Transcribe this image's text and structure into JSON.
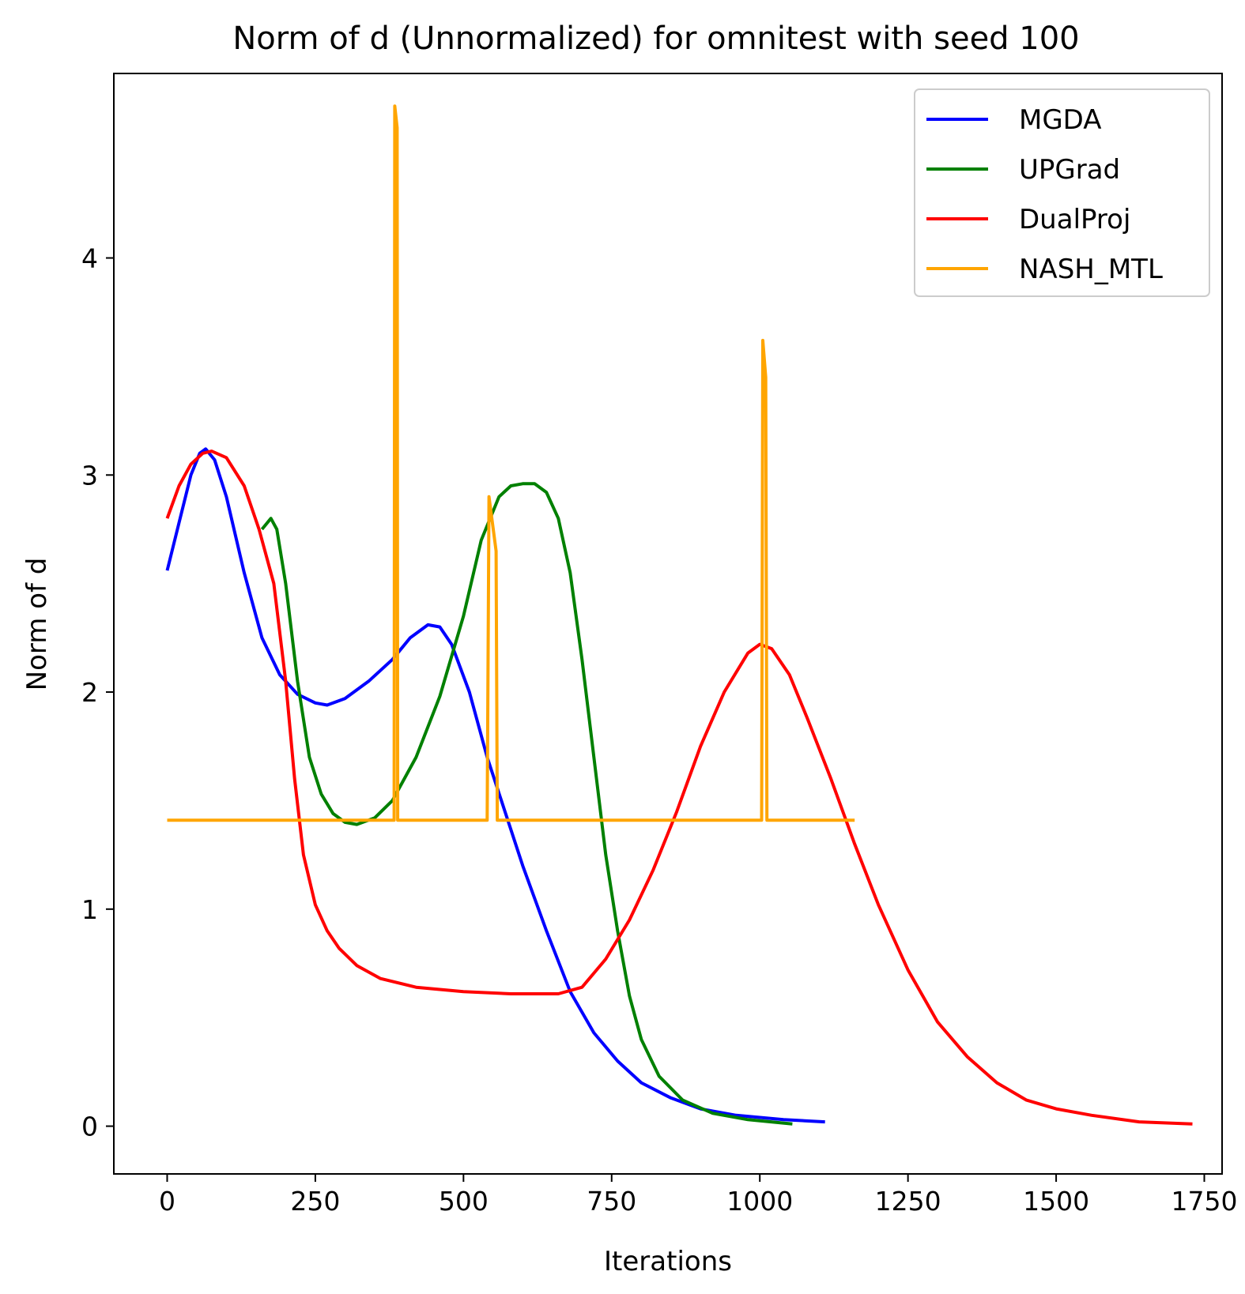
{
  "chart_data": {
    "type": "line",
    "title": "Norm of d (Unnormalized) for omnitest with seed 100",
    "xlabel": "Iterations",
    "ylabel": "Norm of d",
    "xlim": [
      -90,
      1780
    ],
    "ylim": [
      -0.22,
      4.85
    ],
    "xticks": [
      0,
      250,
      500,
      750,
      1000,
      1250,
      1500,
      1750
    ],
    "yticks": [
      0,
      1,
      2,
      3,
      4
    ],
    "legend_position": "top-right",
    "grid": false,
    "series": [
      {
        "name": "MGDA",
        "color": "#0000ff",
        "points": [
          [
            0,
            2.56
          ],
          [
            20,
            2.78
          ],
          [
            40,
            3.0
          ],
          [
            55,
            3.1
          ],
          [
            65,
            3.12
          ],
          [
            80,
            3.07
          ],
          [
            100,
            2.9
          ],
          [
            130,
            2.55
          ],
          [
            160,
            2.25
          ],
          [
            190,
            2.08
          ],
          [
            220,
            1.99
          ],
          [
            250,
            1.95
          ],
          [
            270,
            1.94
          ],
          [
            300,
            1.97
          ],
          [
            340,
            2.05
          ],
          [
            380,
            2.15
          ],
          [
            410,
            2.25
          ],
          [
            440,
            2.31
          ],
          [
            460,
            2.3
          ],
          [
            480,
            2.22
          ],
          [
            510,
            2.0
          ],
          [
            540,
            1.7
          ],
          [
            570,
            1.45
          ],
          [
            600,
            1.2
          ],
          [
            640,
            0.9
          ],
          [
            680,
            0.62
          ],
          [
            720,
            0.43
          ],
          [
            760,
            0.3
          ],
          [
            800,
            0.2
          ],
          [
            850,
            0.13
          ],
          [
            900,
            0.08
          ],
          [
            960,
            0.05
          ],
          [
            1040,
            0.03
          ],
          [
            1110,
            0.02
          ]
        ]
      },
      {
        "name": "UPGrad",
        "color": "#008000",
        "points": [
          [
            160,
            2.75
          ],
          [
            175,
            2.8
          ],
          [
            185,
            2.75
          ],
          [
            200,
            2.5
          ],
          [
            220,
            2.05
          ],
          [
            240,
            1.7
          ],
          [
            260,
            1.53
          ],
          [
            280,
            1.44
          ],
          [
            300,
            1.4
          ],
          [
            320,
            1.39
          ],
          [
            350,
            1.42
          ],
          [
            380,
            1.5
          ],
          [
            420,
            1.7
          ],
          [
            460,
            1.98
          ],
          [
            500,
            2.35
          ],
          [
            530,
            2.7
          ],
          [
            560,
            2.9
          ],
          [
            580,
            2.95
          ],
          [
            600,
            2.96
          ],
          [
            620,
            2.96
          ],
          [
            640,
            2.92
          ],
          [
            660,
            2.8
          ],
          [
            680,
            2.55
          ],
          [
            700,
            2.15
          ],
          [
            720,
            1.7
          ],
          [
            740,
            1.25
          ],
          [
            760,
            0.9
          ],
          [
            780,
            0.6
          ],
          [
            800,
            0.4
          ],
          [
            830,
            0.23
          ],
          [
            870,
            0.12
          ],
          [
            920,
            0.06
          ],
          [
            980,
            0.03
          ],
          [
            1055,
            0.01
          ]
        ]
      },
      {
        "name": "DualProj",
        "color": "#ff0000",
        "points": [
          [
            0,
            2.8
          ],
          [
            20,
            2.95
          ],
          [
            40,
            3.05
          ],
          [
            60,
            3.1
          ],
          [
            75,
            3.11
          ],
          [
            100,
            3.08
          ],
          [
            130,
            2.95
          ],
          [
            155,
            2.75
          ],
          [
            180,
            2.5
          ],
          [
            200,
            2.05
          ],
          [
            215,
            1.6
          ],
          [
            230,
            1.25
          ],
          [
            250,
            1.02
          ],
          [
            270,
            0.9
          ],
          [
            290,
            0.82
          ],
          [
            320,
            0.74
          ],
          [
            360,
            0.68
          ],
          [
            420,
            0.64
          ],
          [
            500,
            0.62
          ],
          [
            580,
            0.61
          ],
          [
            660,
            0.61
          ],
          [
            700,
            0.64
          ],
          [
            740,
            0.77
          ],
          [
            780,
            0.95
          ],
          [
            820,
            1.18
          ],
          [
            860,
            1.45
          ],
          [
            900,
            1.75
          ],
          [
            940,
            2.0
          ],
          [
            980,
            2.18
          ],
          [
            1000,
            2.22
          ],
          [
            1020,
            2.2
          ],
          [
            1050,
            2.08
          ],
          [
            1080,
            1.88
          ],
          [
            1120,
            1.6
          ],
          [
            1160,
            1.3
          ],
          [
            1200,
            1.02
          ],
          [
            1250,
            0.72
          ],
          [
            1300,
            0.48
          ],
          [
            1350,
            0.32
          ],
          [
            1400,
            0.2
          ],
          [
            1450,
            0.12
          ],
          [
            1500,
            0.08
          ],
          [
            1560,
            0.05
          ],
          [
            1640,
            0.02
          ],
          [
            1730,
            0.01
          ]
        ]
      },
      {
        "name": "NASH_MTL",
        "color": "#ffa500",
        "points": [
          [
            0,
            1.41
          ],
          [
            383,
            1.41
          ],
          [
            384,
            4.7
          ],
          [
            388,
            4.6
          ],
          [
            389,
            1.41
          ],
          [
            540,
            1.41
          ],
          [
            543,
            2.9
          ],
          [
            555,
            2.65
          ],
          [
            557,
            1.41
          ],
          [
            1003,
            1.41
          ],
          [
            1005,
            3.62
          ],
          [
            1010,
            3.45
          ],
          [
            1012,
            1.41
          ],
          [
            1160,
            1.41
          ]
        ]
      }
    ]
  }
}
